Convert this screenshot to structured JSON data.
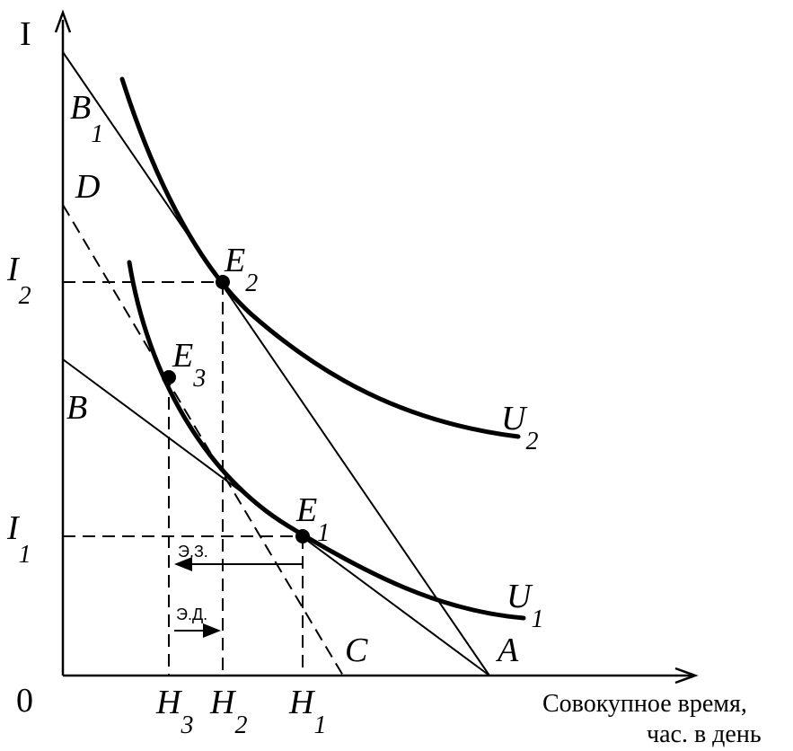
{
  "axes": {
    "y_label": "I",
    "origin_label": "0",
    "x_caption_line1": "Совокупное время,",
    "x_caption_line2": "час. в день"
  },
  "labels": {
    "B1": {
      "main": "B",
      "sub": "1"
    },
    "D": {
      "main": "D"
    },
    "B": {
      "main": "B"
    },
    "I2": {
      "main": "I",
      "sub": "2"
    },
    "I1": {
      "main": "I",
      "sub": "1"
    },
    "E2": {
      "main": "E",
      "sub": "2"
    },
    "E3": {
      "main": "E",
      "sub": "3"
    },
    "E1": {
      "main": "E",
      "sub": "1"
    },
    "U2": {
      "main": "U",
      "sub": "2"
    },
    "U1": {
      "main": "U",
      "sub": "1"
    },
    "C": {
      "main": "C"
    },
    "A": {
      "main": "A"
    },
    "H3": {
      "main": "H",
      "sub": "3"
    },
    "H2": {
      "main": "H",
      "sub": "2"
    },
    "H1": {
      "main": "H",
      "sub": "1"
    }
  },
  "effects": {
    "substitution": "Э.З.",
    "income": "Э.Д."
  }
}
